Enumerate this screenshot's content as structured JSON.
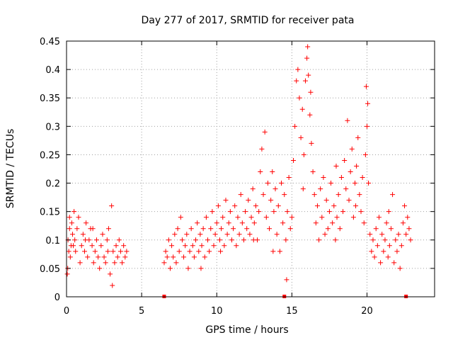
{
  "chart_data": {
    "type": "scatter",
    "title": "Day 277 of 2017, SRMTID for receiver pata",
    "xlabel": "GPS time / hours",
    "ylabel": "SRMTID / TECUs",
    "xlim": [
      0,
      24.5
    ],
    "ylim": [
      0,
      0.45
    ],
    "xticks": [
      0,
      5,
      10,
      15,
      20
    ],
    "yticks": [
      0,
      0.05,
      0.1,
      0.15,
      0.2,
      0.25,
      0.3,
      0.35,
      0.4,
      0.45
    ],
    "xtick_labels": [
      "0",
      "5",
      "10",
      "15",
      "20"
    ],
    "ytick_labels": [
      "0",
      "0.05",
      "0.1",
      "0.15",
      "0.2",
      "0.25",
      "0.3",
      "0.35",
      "0.4",
      "0.45"
    ],
    "grid": true,
    "marker": "+",
    "color": "#ff0000",
    "series": [
      {
        "name": "SRMTID",
        "points": [
          [
            0.05,
            0.04
          ],
          [
            0.1,
            0.1
          ],
          [
            0.15,
            0.08
          ],
          [
            0.2,
            0.12
          ],
          [
            0.25,
            0.07
          ],
          [
            0.3,
            0.09
          ],
          [
            0.35,
            0.13
          ],
          [
            0.4,
            0.11
          ],
          [
            0.5,
            0.15
          ],
          [
            0.55,
            0.1
          ],
          [
            0.6,
            0.08
          ],
          [
            0.7,
            0.12
          ],
          [
            0.8,
            0.14
          ],
          [
            0.9,
            0.06
          ],
          [
            1.0,
            0.09
          ],
          [
            1.1,
            0.11
          ],
          [
            1.2,
            0.08
          ],
          [
            1.3,
            0.13
          ],
          [
            1.4,
            0.07
          ],
          [
            1.5,
            0.1
          ],
          [
            1.6,
            0.12
          ],
          [
            1.7,
            0.09
          ],
          [
            1.8,
            0.06
          ],
          [
            1.9,
            0.08
          ],
          [
            2.0,
            0.1
          ],
          [
            2.1,
            0.07
          ],
          [
            2.2,
            0.05
          ],
          [
            2.3,
            0.09
          ],
          [
            2.4,
            0.11
          ],
          [
            2.5,
            0.07
          ],
          [
            2.6,
            0.06
          ],
          [
            2.7,
            0.1
          ],
          [
            2.8,
            0.12
          ],
          [
            2.9,
            0.04
          ],
          [
            3.0,
            0.16
          ],
          [
            3.05,
            0.02
          ],
          [
            3.1,
            0.08
          ],
          [
            3.2,
            0.06
          ],
          [
            3.3,
            0.09
          ],
          [
            3.4,
            0.07
          ],
          [
            3.5,
            0.1
          ],
          [
            3.6,
            0.08
          ],
          [
            3.7,
            0.06
          ],
          [
            3.8,
            0.09
          ],
          [
            3.9,
            0.07
          ],
          [
            4.0,
            0.08
          ],
          [
            0.08,
            0.05
          ],
          [
            0.45,
            0.09
          ],
          [
            1.25,
            0.1
          ],
          [
            2.75,
            0.08
          ],
          [
            6.5,
            0.06
          ],
          [
            6.6,
            0.08
          ],
          [
            6.7,
            0.07
          ],
          [
            6.8,
            0.1
          ],
          [
            6.9,
            0.05
          ],
          [
            7.0,
            0.09
          ],
          [
            7.1,
            0.07
          ],
          [
            7.2,
            0.11
          ],
          [
            7.3,
            0.06
          ],
          [
            7.4,
            0.12
          ],
          [
            7.5,
            0.08
          ],
          [
            7.6,
            0.14
          ],
          [
            7.7,
            0.1
          ],
          [
            7.8,
            0.07
          ],
          [
            7.9,
            0.09
          ],
          [
            8.0,
            0.11
          ],
          [
            8.1,
            0.05
          ],
          [
            8.2,
            0.08
          ],
          [
            8.3,
            0.12
          ],
          [
            8.4,
            0.09
          ],
          [
            8.5,
            0.07
          ],
          [
            8.6,
            0.1
          ],
          [
            8.7,
            0.13
          ],
          [
            8.8,
            0.08
          ],
          [
            8.9,
            0.11
          ],
          [
            9.0,
            0.09
          ],
          [
            9.1,
            0.12
          ],
          [
            9.2,
            0.07
          ],
          [
            9.3,
            0.14
          ],
          [
            9.4,
            0.1
          ],
          [
            9.5,
            0.08
          ],
          [
            9.6,
            0.12
          ],
          [
            9.7,
            0.15
          ],
          [
            9.8,
            0.09
          ],
          [
            9.9,
            0.11
          ],
          [
            10.0,
            0.13
          ],
          [
            10.1,
            0.16
          ],
          [
            10.2,
            0.1
          ],
          [
            10.3,
            0.12
          ],
          [
            10.4,
            0.14
          ],
          [
            10.5,
            0.09
          ],
          [
            10.6,
            0.17
          ],
          [
            10.7,
            0.11
          ],
          [
            10.8,
            0.13
          ],
          [
            10.9,
            0.15
          ],
          [
            11.0,
            0.1
          ],
          [
            11.1,
            0.12
          ],
          [
            11.2,
            0.16
          ],
          [
            11.3,
            0.09
          ],
          [
            11.4,
            0.14
          ],
          [
            11.5,
            0.11
          ],
          [
            11.6,
            0.18
          ],
          [
            11.7,
            0.13
          ],
          [
            11.8,
            0.1
          ],
          [
            11.9,
            0.15
          ],
          [
            12.0,
            0.12
          ],
          [
            12.1,
            0.17
          ],
          [
            12.2,
            0.11
          ],
          [
            12.3,
            0.14
          ],
          [
            12.4,
            0.19
          ],
          [
            12.5,
            0.13
          ],
          [
            12.6,
            0.16
          ],
          [
            12.7,
            0.1
          ],
          [
            12.8,
            0.15
          ],
          [
            12.9,
            0.22
          ],
          [
            13.0,
            0.26
          ],
          [
            13.1,
            0.18
          ],
          [
            13.2,
            0.29
          ],
          [
            13.3,
            0.14
          ],
          [
            13.4,
            0.2
          ],
          [
            13.5,
            0.12
          ],
          [
            13.6,
            0.17
          ],
          [
            13.7,
            0.22
          ],
          [
            13.8,
            0.15
          ],
          [
            13.9,
            0.19
          ],
          [
            14.0,
            0.11
          ],
          [
            14.1,
            0.16
          ],
          [
            14.2,
            0.08
          ],
          [
            14.3,
            0.2
          ],
          [
            14.4,
            0.13
          ],
          [
            14.5,
            0.18
          ],
          [
            14.6,
            0.1
          ],
          [
            14.7,
            0.15
          ],
          [
            14.8,
            0.21
          ],
          [
            14.9,
            0.12
          ],
          [
            15.0,
            0.14
          ],
          [
            15.1,
            0.24
          ],
          [
            15.2,
            0.3
          ],
          [
            15.3,
            0.38
          ],
          [
            15.4,
            0.4
          ],
          [
            15.5,
            0.35
          ],
          [
            15.6,
            0.28
          ],
          [
            15.7,
            0.33
          ],
          [
            15.8,
            0.25
          ],
          [
            15.9,
            0.38
          ],
          [
            16.0,
            0.42
          ],
          [
            16.05,
            0.44
          ],
          [
            16.1,
            0.39
          ],
          [
            16.2,
            0.32
          ],
          [
            16.3,
            0.27
          ],
          [
            16.4,
            0.22
          ],
          [
            16.5,
            0.18
          ],
          [
            16.6,
            0.13
          ],
          [
            16.7,
            0.16
          ],
          [
            16.8,
            0.1
          ],
          [
            16.9,
            0.19
          ],
          [
            17.0,
            0.14
          ],
          [
            17.1,
            0.21
          ],
          [
            17.2,
            0.11
          ],
          [
            17.3,
            0.17
          ],
          [
            17.4,
            0.12
          ],
          [
            17.5,
            0.15
          ],
          [
            17.6,
            0.2
          ],
          [
            17.7,
            0.13
          ],
          [
            17.8,
            0.16
          ],
          [
            17.9,
            0.1
          ],
          [
            18.0,
            0.14
          ],
          [
            18.1,
            0.18
          ],
          [
            18.2,
            0.12
          ],
          [
            18.3,
            0.21
          ],
          [
            18.4,
            0.15
          ],
          [
            18.5,
            0.24
          ],
          [
            18.6,
            0.19
          ],
          [
            18.7,
            0.31
          ],
          [
            18.8,
            0.17
          ],
          [
            18.9,
            0.22
          ],
          [
            19.0,
            0.26
          ],
          [
            19.1,
            0.14
          ],
          [
            19.2,
            0.2
          ],
          [
            19.3,
            0.23
          ],
          [
            19.4,
            0.28
          ],
          [
            19.5,
            0.18
          ],
          [
            19.6,
            0.15
          ],
          [
            19.7,
            0.21
          ],
          [
            19.8,
            0.13
          ],
          [
            19.9,
            0.25
          ],
          [
            19.95,
            0.37
          ],
          [
            20.0,
            0.3
          ],
          [
            20.05,
            0.34
          ],
          [
            20.1,
            0.2
          ],
          [
            20.2,
            0.11
          ],
          [
            20.3,
            0.08
          ],
          [
            20.4,
            0.1
          ],
          [
            20.5,
            0.07
          ],
          [
            20.6,
            0.12
          ],
          [
            20.7,
            0.09
          ],
          [
            20.8,
            0.14
          ],
          [
            20.9,
            0.06
          ],
          [
            21.0,
            0.11
          ],
          [
            21.1,
            0.08
          ],
          [
            21.2,
            0.1
          ],
          [
            21.3,
            0.13
          ],
          [
            21.4,
            0.07
          ],
          [
            21.5,
            0.09
          ],
          [
            21.6,
            0.12
          ],
          [
            21.7,
            0.18
          ],
          [
            21.8,
            0.06
          ],
          [
            21.9,
            0.1
          ],
          [
            22.0,
            0.08
          ],
          [
            22.1,
            0.11
          ],
          [
            22.2,
            0.05
          ],
          [
            22.3,
            0.09
          ],
          [
            22.4,
            0.13
          ],
          [
            22.5,
            0.16
          ],
          [
            22.6,
            0.11
          ],
          [
            22.7,
            0.14
          ],
          [
            22.8,
            0.12
          ],
          [
            22.9,
            0.1
          ],
          [
            0.2,
            0.14
          ],
          [
            1.75,
            0.12
          ],
          [
            8.95,
            0.05
          ],
          [
            10.25,
            0.08
          ],
          [
            12.45,
            0.1
          ],
          [
            13.75,
            0.08
          ],
          [
            14.65,
            0.03
          ],
          [
            15.75,
            0.19
          ],
          [
            16.25,
            0.36
          ],
          [
            17.95,
            0.23
          ],
          [
            19.25,
            0.16
          ],
          [
            21.45,
            0.15
          ]
        ]
      }
    ],
    "x_axis_marker_points": [
      6.5,
      14.5,
      22.6
    ]
  }
}
